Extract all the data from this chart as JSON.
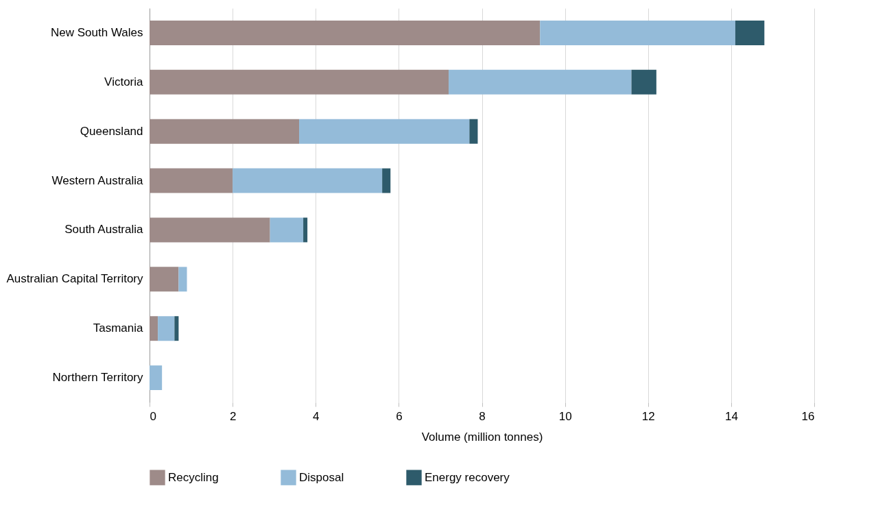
{
  "chart_data": {
    "type": "bar",
    "orientation": "horizontal",
    "stacked": true,
    "xlabel": "Volume (million tonnes)",
    "categories": [
      "New South Wales",
      "Victoria",
      "Queensland",
      "Western Australia",
      "South Australia",
      "Australian Capital Territory",
      "Tasmania",
      "Northern Territory"
    ],
    "series": [
      {
        "name": "Recycling",
        "color": "#9e8b89",
        "values": [
          9.4,
          7.2,
          3.6,
          2.0,
          2.9,
          0.7,
          0.2,
          0
        ]
      },
      {
        "name": "Disposal",
        "color": "#94bbd9",
        "values": [
          4.7,
          4.4,
          4.1,
          3.6,
          0.8,
          0.2,
          0.4,
          0.3
        ]
      },
      {
        "name": "Energy recovery",
        "color": "#2e5b6b",
        "values": [
          0.7,
          0.6,
          0.2,
          0.2,
          0.1,
          0,
          0.1,
          0
        ]
      }
    ],
    "xlim": [
      0,
      16
    ],
    "xticks": [
      0,
      2,
      4,
      6,
      8,
      10,
      12,
      14,
      16
    ],
    "grid": "x",
    "legend": "bottom"
  }
}
